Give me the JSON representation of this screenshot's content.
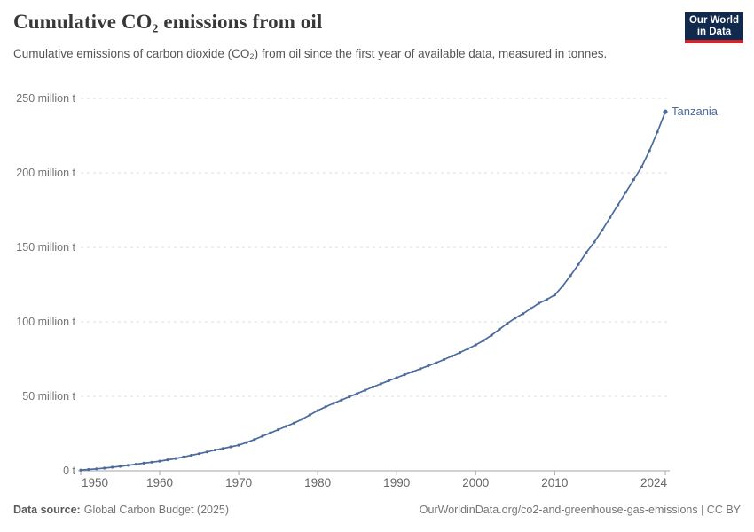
{
  "header": {
    "title": "Cumulative CO₂ emissions from oil",
    "subtitle": "Cumulative emissions of carbon dioxide (CO₂) from oil since the first year of available data, measured in tonnes.",
    "logo": {
      "line1": "Our World",
      "line2": "in Data"
    }
  },
  "chart_data": {
    "type": "line",
    "title": "Cumulative CO₂ emissions from oil",
    "ylabel": "",
    "xlabel": "",
    "unit": "million tonnes",
    "xlim": [
      1950,
      2024
    ],
    "ylim": [
      0,
      250
    ],
    "grid": "horizontal-dashed",
    "legend_position": "end-of-line",
    "x": [
      1950,
      1951,
      1952,
      1953,
      1954,
      1955,
      1956,
      1957,
      1958,
      1959,
      1960,
      1961,
      1962,
      1963,
      1964,
      1965,
      1966,
      1967,
      1968,
      1969,
      1970,
      1971,
      1972,
      1973,
      1974,
      1975,
      1976,
      1977,
      1978,
      1979,
      1980,
      1981,
      1982,
      1983,
      1984,
      1985,
      1986,
      1987,
      1988,
      1989,
      1990,
      1991,
      1992,
      1993,
      1994,
      1995,
      1996,
      1997,
      1998,
      1999,
      2000,
      2001,
      2002,
      2003,
      2004,
      2005,
      2006,
      2007,
      2008,
      2009,
      2010,
      2011,
      2012,
      2013,
      2014,
      2015,
      2016,
      2017,
      2018,
      2019,
      2020,
      2021,
      2022,
      2023,
      2024
    ],
    "series": [
      {
        "name": "Tanzania",
        "color": "#4c6a9c",
        "values": [
          0.5,
          0.9,
          1.3,
          1.8,
          2.4,
          3.0,
          3.7,
          4.4,
          5.1,
          5.8,
          6.5,
          7.4,
          8.3,
          9.3,
          10.4,
          11.5,
          12.7,
          13.9,
          15.0,
          16.1,
          17.2,
          19.0,
          21.0,
          23.2,
          25.4,
          27.6,
          29.8,
          32.0,
          34.6,
          37.5,
          40.5,
          43.0,
          45.3,
          47.5,
          49.7,
          51.9,
          54.1,
          56.3,
          58.4,
          60.5,
          62.5,
          64.5,
          66.5,
          68.5,
          70.5,
          72.5,
          74.7,
          77.0,
          79.4,
          81.9,
          84.5,
          87.5,
          91.0,
          95.0,
          99.0,
          102.5,
          105.5,
          109.0,
          112.5,
          115.0,
          118.0,
          124.0,
          131.0,
          138.5,
          146.5,
          153.5,
          161.5,
          170.0,
          178.5,
          187.0,
          195.5,
          204.0,
          215.0,
          227.5,
          241.0
        ]
      }
    ],
    "yticks": [
      {
        "value": 0,
        "label": "0 t"
      },
      {
        "value": 50,
        "label": "50 million t"
      },
      {
        "value": 100,
        "label": "100 million t"
      },
      {
        "value": 150,
        "label": "150 million t"
      },
      {
        "value": 200,
        "label": "200 million t"
      },
      {
        "value": 250,
        "label": "250 million t"
      }
    ],
    "xticks": [
      {
        "value": 1950,
        "label": "1950"
      },
      {
        "value": 1960,
        "label": "1960"
      },
      {
        "value": 1970,
        "label": "1970"
      },
      {
        "value": 1980,
        "label": "1980"
      },
      {
        "value": 1990,
        "label": "1990"
      },
      {
        "value": 2000,
        "label": "2000"
      },
      {
        "value": 2010,
        "label": "2010"
      },
      {
        "value": 2024,
        "label": "2024"
      }
    ]
  },
  "footer": {
    "source_label": "Data source:",
    "source_value": "Global Carbon Budget (2025)",
    "right_text": "OurWorldinData.org/co2-and-greenhouse-gas-emissions | CC BY"
  },
  "colors": {
    "series": "#4c6a9c",
    "gridline": "#dcdcdc",
    "axis": "#a5a5a5",
    "logo_bg": "#10294d",
    "logo_red": "#d1242a"
  }
}
